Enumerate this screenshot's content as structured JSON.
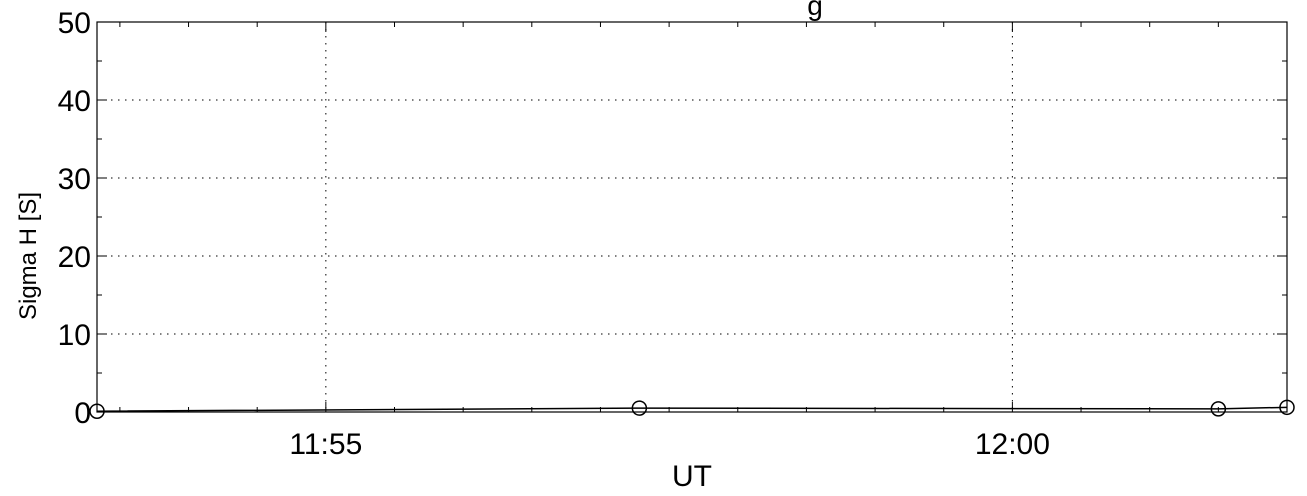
{
  "chart_data": {
    "type": "line",
    "title": "g",
    "xlabel": "UT",
    "ylabel": "Sigma H [S]",
    "x_major_ticks": [
      "11:55",
      "12:00"
    ],
    "x_range": [
      "11:53:20",
      "12:02:00"
    ],
    "ylim": [
      0,
      50
    ],
    "y_ticks": [
      0,
      10,
      20,
      30,
      40,
      50
    ],
    "grid": true,
    "series": [
      {
        "marker": "circle",
        "color": "#000000",
        "x": [
          "11:53:20",
          "11:57:17",
          "12:01:30",
          "12:02:00"
        ],
        "y": [
          0.1,
          0.5,
          0.4,
          0.6
        ]
      }
    ]
  }
}
